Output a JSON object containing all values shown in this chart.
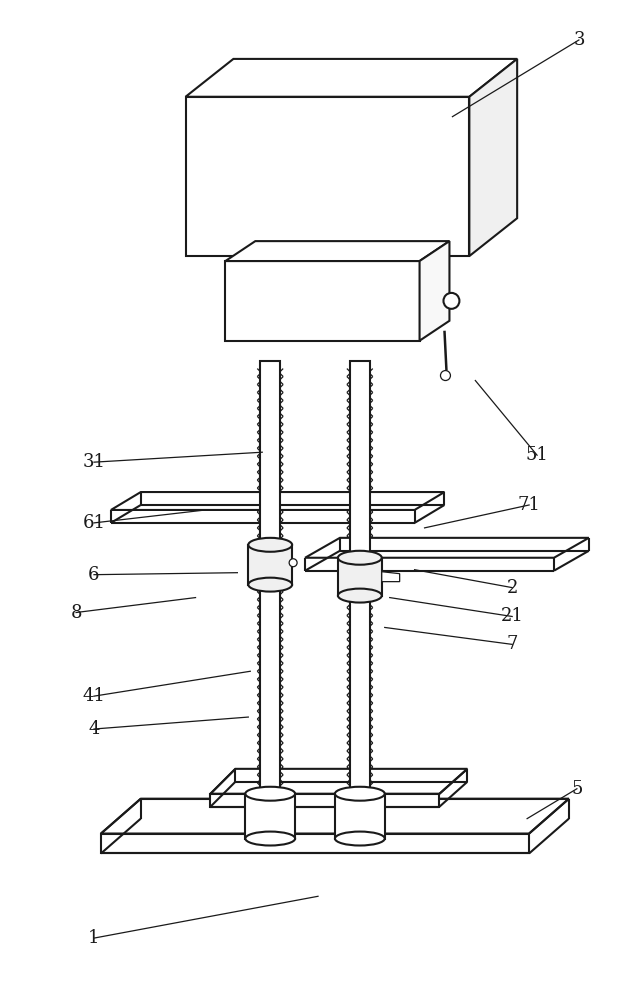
{
  "background_color": "#ffffff",
  "line_color": "#1a1a1a",
  "figsize": [
    6.44,
    10.0
  ],
  "dpi": 100,
  "annotations": {
    "3": {
      "lp": [
        580,
        38
      ],
      "ae": [
        453,
        115
      ]
    },
    "31": {
      "lp": [
        93,
        462
      ],
      "ae": [
        262,
        452
      ]
    },
    "51": {
      "lp": [
        538,
        455
      ],
      "ae": [
        476,
        380
      ]
    },
    "61": {
      "lp": [
        93,
        523
      ],
      "ae": [
        205,
        510
      ]
    },
    "71": {
      "lp": [
        530,
        505
      ],
      "ae": [
        425,
        528
      ]
    },
    "6": {
      "lp": [
        93,
        575
      ],
      "ae": [
        237,
        573
      ]
    },
    "8": {
      "lp": [
        75,
        613
      ],
      "ae": [
        195,
        598
      ]
    },
    "2": {
      "lp": [
        513,
        588
      ],
      "ae": [
        415,
        570
      ]
    },
    "21": {
      "lp": [
        513,
        617
      ],
      "ae": [
        390,
        598
      ]
    },
    "7": {
      "lp": [
        513,
        645
      ],
      "ae": [
        385,
        628
      ]
    },
    "41": {
      "lp": [
        93,
        697
      ],
      "ae": [
        250,
        672
      ]
    },
    "4": {
      "lp": [
        93,
        730
      ],
      "ae": [
        248,
        718
      ]
    },
    "1": {
      "lp": [
        93,
        940
      ],
      "ae": [
        318,
        898
      ]
    },
    "5": {
      "lp": [
        578,
        790
      ],
      "ae": [
        528,
        820
      ]
    }
  }
}
